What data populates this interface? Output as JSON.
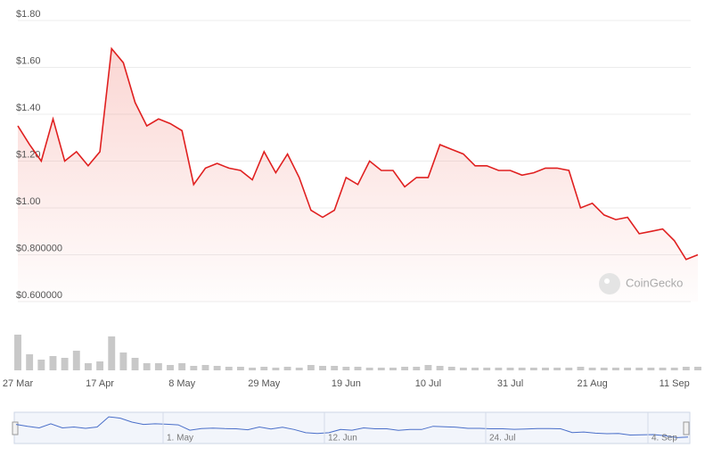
{
  "chart_data": {
    "type": "line",
    "categories": [
      "27 Mar",
      null,
      null,
      null,
      null,
      null,
      null,
      "17 Apr",
      null,
      null,
      null,
      null,
      null,
      null,
      "8 May",
      null,
      null,
      null,
      null,
      null,
      null,
      "29 May",
      null,
      null,
      null,
      null,
      null,
      null,
      "19 Jun",
      null,
      null,
      null,
      null,
      null,
      null,
      "10 Jul",
      null,
      null,
      null,
      null,
      null,
      null,
      "31 Jul",
      null,
      null,
      null,
      null,
      null,
      null,
      "21 Aug",
      null,
      null,
      null,
      null,
      null,
      null,
      "11 Sep",
      null,
      null
    ],
    "series": [
      {
        "name": "Price",
        "color": "#e02020",
        "values": [
          1.35,
          1.27,
          1.2,
          1.38,
          1.2,
          1.24,
          1.18,
          1.24,
          1.68,
          1.62,
          1.45,
          1.35,
          1.38,
          1.36,
          1.33,
          1.1,
          1.17,
          1.19,
          1.17,
          1.16,
          1.12,
          1.24,
          1.15,
          1.23,
          1.13,
          0.99,
          0.96,
          0.99,
          1.13,
          1.1,
          1.2,
          1.16,
          1.16,
          1.09,
          1.13,
          1.13,
          1.27,
          1.25,
          1.23,
          1.18,
          1.18,
          1.16,
          1.16,
          1.14,
          1.15,
          1.17,
          1.17,
          1.16,
          1.0,
          1.02,
          0.97,
          0.95,
          0.96,
          0.89,
          0.9,
          0.91,
          0.86,
          0.78,
          0.8
        ]
      },
      {
        "name": "Volume",
        "color": "#c8c8c8",
        "values": [
          40,
          18,
          12,
          16,
          14,
          22,
          8,
          10,
          38,
          20,
          14,
          8,
          8,
          6,
          8,
          5,
          6,
          5,
          4,
          4,
          3,
          4,
          3,
          4,
          3,
          6,
          5,
          5,
          4,
          4,
          3,
          3,
          3,
          4,
          4,
          6,
          5,
          4,
          3,
          3,
          3,
          3,
          3,
          3,
          3,
          3,
          3,
          3,
          4,
          3,
          3,
          3,
          3,
          3,
          3,
          3,
          3,
          4,
          4
        ]
      }
    ],
    "ylim": [
      0.6,
      1.8
    ],
    "yticks": [
      {
        "value": 1.8,
        "label": "$1.80"
      },
      {
        "value": 1.6,
        "label": "$1.60"
      },
      {
        "value": 1.4,
        "label": "$1.40"
      },
      {
        "value": 1.2,
        "label": "$1.20"
      },
      {
        "value": 1.0,
        "label": "$1.00"
      },
      {
        "value": 0.8,
        "label": "$0.800000"
      },
      {
        "value": 0.6,
        "label": "$0.600000"
      }
    ],
    "volume_ylim": [
      0,
      45
    ],
    "grid": true,
    "watermark": "CoinGecko",
    "navigator_labels": [
      "1. May",
      "12. Jun",
      "24. Jul",
      "4. Sep"
    ]
  }
}
